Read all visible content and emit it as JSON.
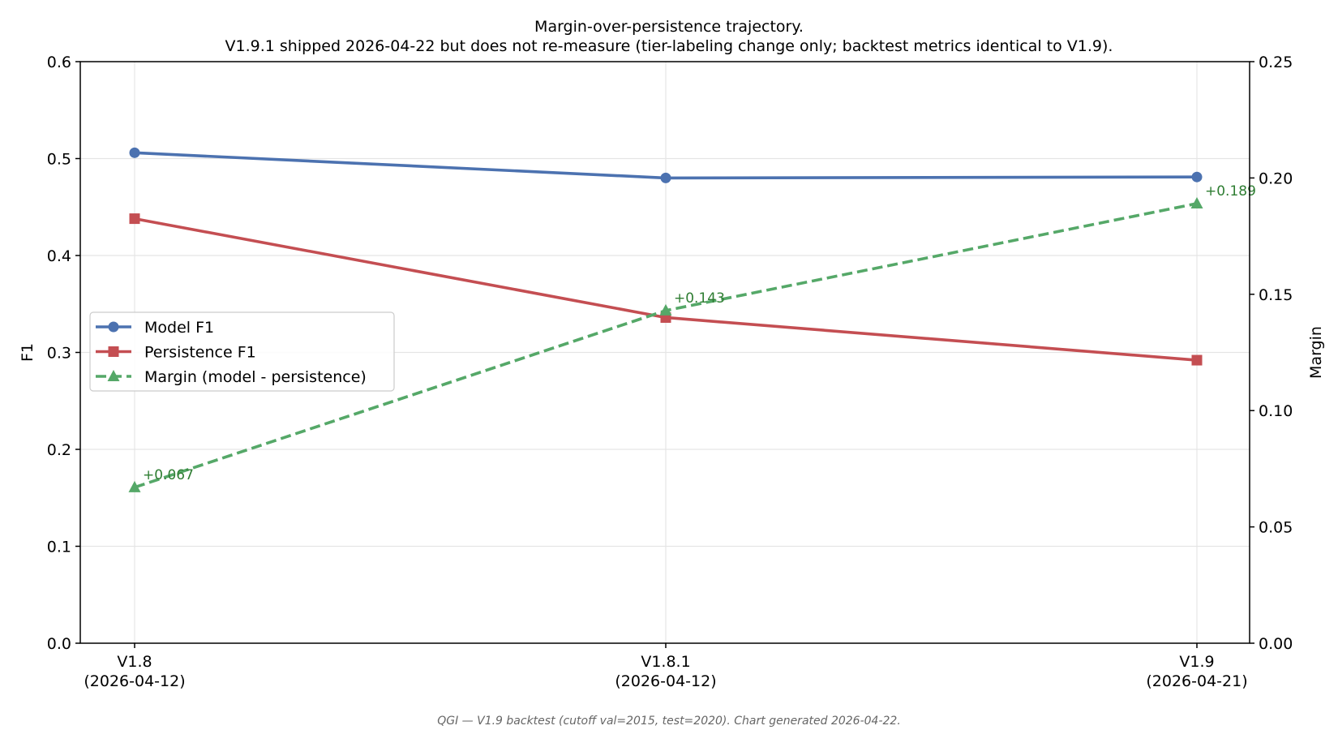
{
  "chart_data": {
    "type": "line",
    "title": "Margin-over-persistence trajectory.",
    "subtitle": "V1.9.1 shipped 2026-04-22 but does not re-measure (tier-labeling change only; backtest metrics identical to V1.9).",
    "categories": [
      [
        "V1.8",
        "(2026-04-12)"
      ],
      [
        "V1.8.1",
        "(2026-04-12)"
      ],
      [
        "V1.9",
        "(2026-04-21)"
      ]
    ],
    "ylabel_left": "F1",
    "ylabel_right": "Margin",
    "ylim_left": [
      0,
      0.6
    ],
    "ylim_right": [
      0,
      0.25
    ],
    "yticks_left": [
      "0.0",
      "0.1",
      "0.2",
      "0.3",
      "0.4",
      "0.5",
      "0.6"
    ],
    "yticks_right": [
      "0.00",
      "0.05",
      "0.10",
      "0.15",
      "0.20",
      "0.25"
    ],
    "grid": true,
    "legend_position": "center-left",
    "series": [
      {
        "name": "Model F1",
        "axis": "left",
        "values": [
          0.506,
          0.48,
          0.481
        ],
        "color": "#4c72b0",
        "marker": "circle",
        "dash": "solid"
      },
      {
        "name": "Persistence F1",
        "axis": "left",
        "values": [
          0.438,
          0.336,
          0.292
        ],
        "color": "#c44e52",
        "marker": "square",
        "dash": "solid"
      },
      {
        "name": "Margin (model - persistence)",
        "axis": "right",
        "values": [
          0.067,
          0.143,
          0.189
        ],
        "color": "#55a868",
        "marker": "triangle",
        "dash": "dashed",
        "labels": [
          "+0.067",
          "+0.143",
          "+0.189"
        ]
      }
    ],
    "annotation_color": "#2e7d32",
    "footer": "QGI — V1.9 backtest (cutoff val=2015, test=2020). Chart generated 2026-04-22."
  }
}
